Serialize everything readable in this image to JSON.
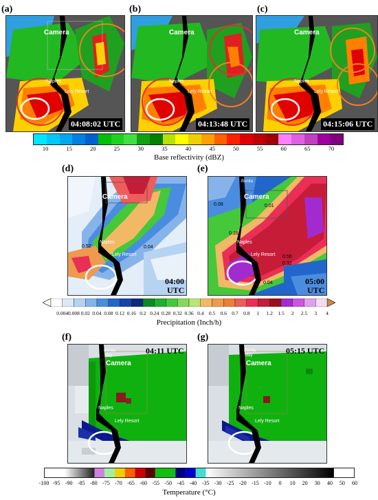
{
  "panels": {
    "a": {
      "letter": "(a)",
      "time": "04:08:02 UTC"
    },
    "b": {
      "letter": "(b)",
      "time": "04:13:48 UTC"
    },
    "c": {
      "letter": "(c)",
      "time": "04:15:06 UTC"
    },
    "d": {
      "letter": "(d)",
      "time_line1": "04:00",
      "time_line2": "UTC",
      "value_labels": [
        "0.52",
        "0.04"
      ]
    },
    "e": {
      "letter": "(e)",
      "time_line1": "05:00",
      "time_line2": "UTC",
      "value_labels": [
        "0.08",
        "0.01",
        "0.16",
        "0.56",
        "0.32",
        "0.04"
      ]
    },
    "f": {
      "letter": "(f)",
      "time": "04:11 UTC"
    },
    "g": {
      "letter": "(g)",
      "time": "05:15 UTC"
    }
  },
  "map_labels": {
    "camera": "Camera",
    "naples": "Naples",
    "lely": "Lely Resort",
    "bonita": "Bonita",
    "bay": "Bay"
  },
  "reflectivity_bar": {
    "title": "Base reflectivity (dBZ)",
    "ticks": [
      "10",
      "15",
      "20",
      "25",
      "30",
      "35",
      "40",
      "45",
      "50",
      "55",
      "60",
      "65",
      "70"
    ],
    "colors": [
      "#00e5ff",
      "#00c8ff",
      "#00a8f0",
      "#0080e0",
      "#0060d0",
      "#00c000",
      "#20d020",
      "#40e040",
      "#10a010",
      "#008000",
      "#b8e000",
      "#ffff00",
      "#f0d000",
      "#ffa000",
      "#ff6000",
      "#ff2000",
      "#e00000",
      "#c00000",
      "#a00000",
      "#ff80ff",
      "#e060e0",
      "#c040c0",
      "#a000a0",
      "#800080"
    ]
  },
  "precip_bar": {
    "title": "Precipitation  (Inch/h)",
    "ticks": [
      "0.004",
      "0.008",
      "0.02",
      "0.04",
      "0.08",
      "0.12",
      "0.16",
      "0.2",
      "0.24",
      "0.28",
      "0.32",
      "0.36",
      "0.4",
      "0.5",
      "0.6",
      "0.7",
      "0.8",
      "1",
      "1.2",
      "1.5",
      "2",
      "2.5",
      "3",
      "4"
    ],
    "colors": [
      "#ffffff",
      "#dce9f8",
      "#b6d3f2",
      "#86b4ea",
      "#4a8de0",
      "#2266cc",
      "#1444a8",
      "#0c2c7c",
      "#0e8a22",
      "#1fb02e",
      "#45c83a",
      "#86d95a",
      "#b9e67a",
      "#f1b866",
      "#ef9a4e",
      "#f07d38",
      "#ee5c5c",
      "#ea2f56",
      "#c71c38",
      "#9a0f1c",
      "#a22bd0",
      "#cc55e2",
      "#e0a0ee",
      "#f4dcf8"
    ]
  },
  "temp_bar": {
    "title": "Temperature (°C)",
    "ticks": [
      "-100",
      "-95",
      "-90",
      "-85",
      "-80",
      "-75",
      "-70",
      "-65",
      "-60",
      "-55",
      "-50",
      "-45",
      "-40",
      "-35",
      "-30",
      "-25",
      "-20",
      "-15",
      "-10",
      "0",
      "10",
      "20",
      "30",
      "40",
      "50",
      "60"
    ]
  }
}
